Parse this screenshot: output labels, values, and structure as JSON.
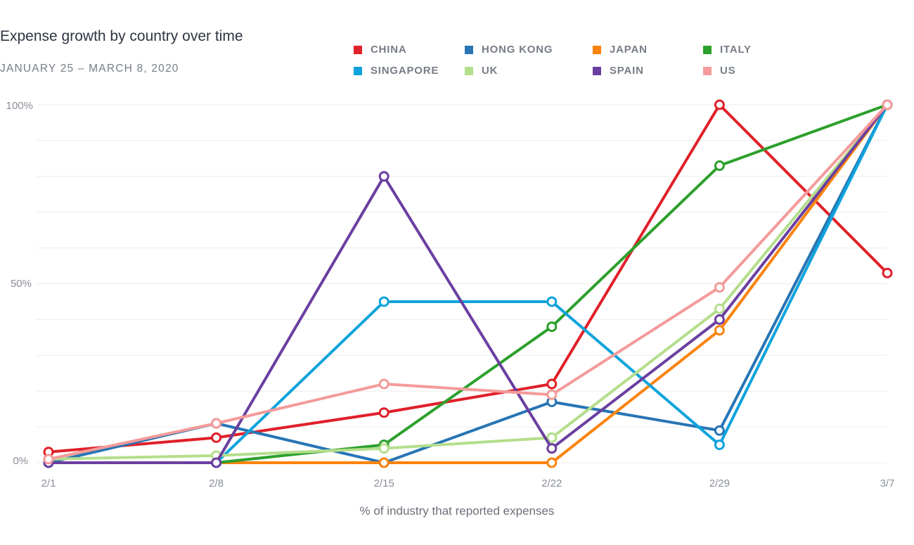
{
  "chart_data": {
    "type": "line",
    "title": "Expense growth by country over time",
    "subtitle": "JANUARY 25 – MARCH 8, 2020",
    "xlabel": "% of industry that reported expenses",
    "ylabel": "",
    "x": [
      "2/1",
      "2/8",
      "2/15",
      "2/22",
      "2/29",
      "3/7"
    ],
    "yticks": [
      {
        "value": 100,
        "label": "100%"
      },
      {
        "value": 50,
        "label": "50%"
      },
      {
        "value": 0,
        "label": "0%"
      }
    ],
    "ylim": [
      0,
      100
    ],
    "grid": true,
    "legend_position": "top",
    "series": [
      {
        "name": "CHINA",
        "color": "#e0202a",
        "values": [
          3,
          7,
          14,
          22,
          100,
          53
        ]
      },
      {
        "name": "HONG KONG",
        "color": "#2775b5",
        "values": [
          0,
          11,
          0,
          17,
          9,
          100
        ]
      },
      {
        "name": "JAPAN",
        "color": "#fb830d",
        "values": [
          0,
          0,
          0,
          0,
          37,
          100
        ]
      },
      {
        "name": "ITALY",
        "color": "#2ca02c",
        "values": [
          0,
          0,
          5,
          38,
          83,
          100
        ]
      },
      {
        "name": "SINGAPORE",
        "color": "#0ea3dc",
        "values": [
          0,
          0,
          45,
          45,
          5,
          100
        ]
      },
      {
        "name": "UK",
        "color": "#b4de8c",
        "values": [
          1,
          2,
          4,
          7,
          43,
          100
        ]
      },
      {
        "name": "SPAIN",
        "color": "#6b3fa0",
        "values": [
          0,
          0,
          80,
          4,
          40,
          100
        ]
      },
      {
        "name": "US",
        "color": "#f49a9a",
        "values": [
          1,
          11,
          22,
          19,
          49,
          100
        ]
      }
    ]
  }
}
